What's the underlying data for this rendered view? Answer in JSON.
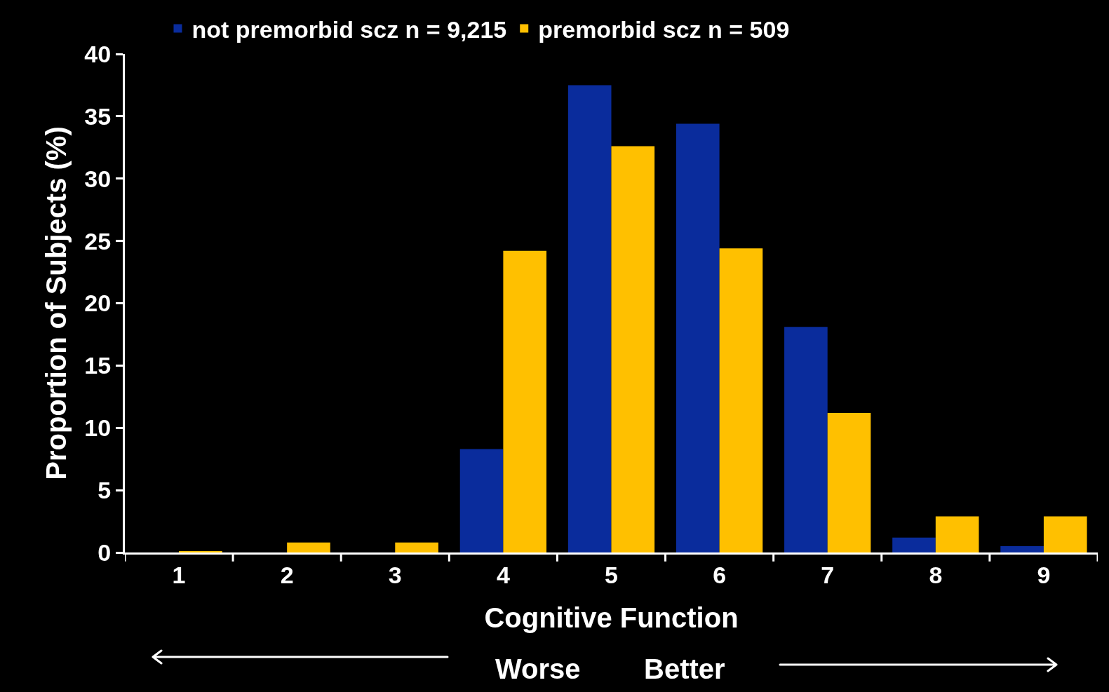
{
  "chart_data": {
    "type": "bar",
    "xlabel": "Cognitive Function",
    "ylabel": "Proportion of Subjects (%)",
    "categories": [
      "1",
      "2",
      "3",
      "4",
      "5",
      "6",
      "7",
      "8",
      "9"
    ],
    "series": [
      {
        "name": "not premorbid scz n = 9,215",
        "color": "#0a2c9c",
        "values": [
          0,
          0,
          0,
          8.3,
          37.5,
          34.4,
          18.1,
          1.2,
          0.5
        ]
      },
      {
        "name": "premorbid scz n = 509",
        "color": "#ffc000",
        "values": [
          0.1,
          0.8,
          0.8,
          24.2,
          32.6,
          24.4,
          11.2,
          2.9,
          2.9
        ]
      }
    ],
    "annotations": [
      "Worse",
      "Better"
    ],
    "ylim": [
      0,
      40
    ],
    "yticks": [
      0,
      5,
      10,
      15,
      20,
      25,
      30,
      35,
      40
    ],
    "grid": false,
    "legend": "top"
  }
}
